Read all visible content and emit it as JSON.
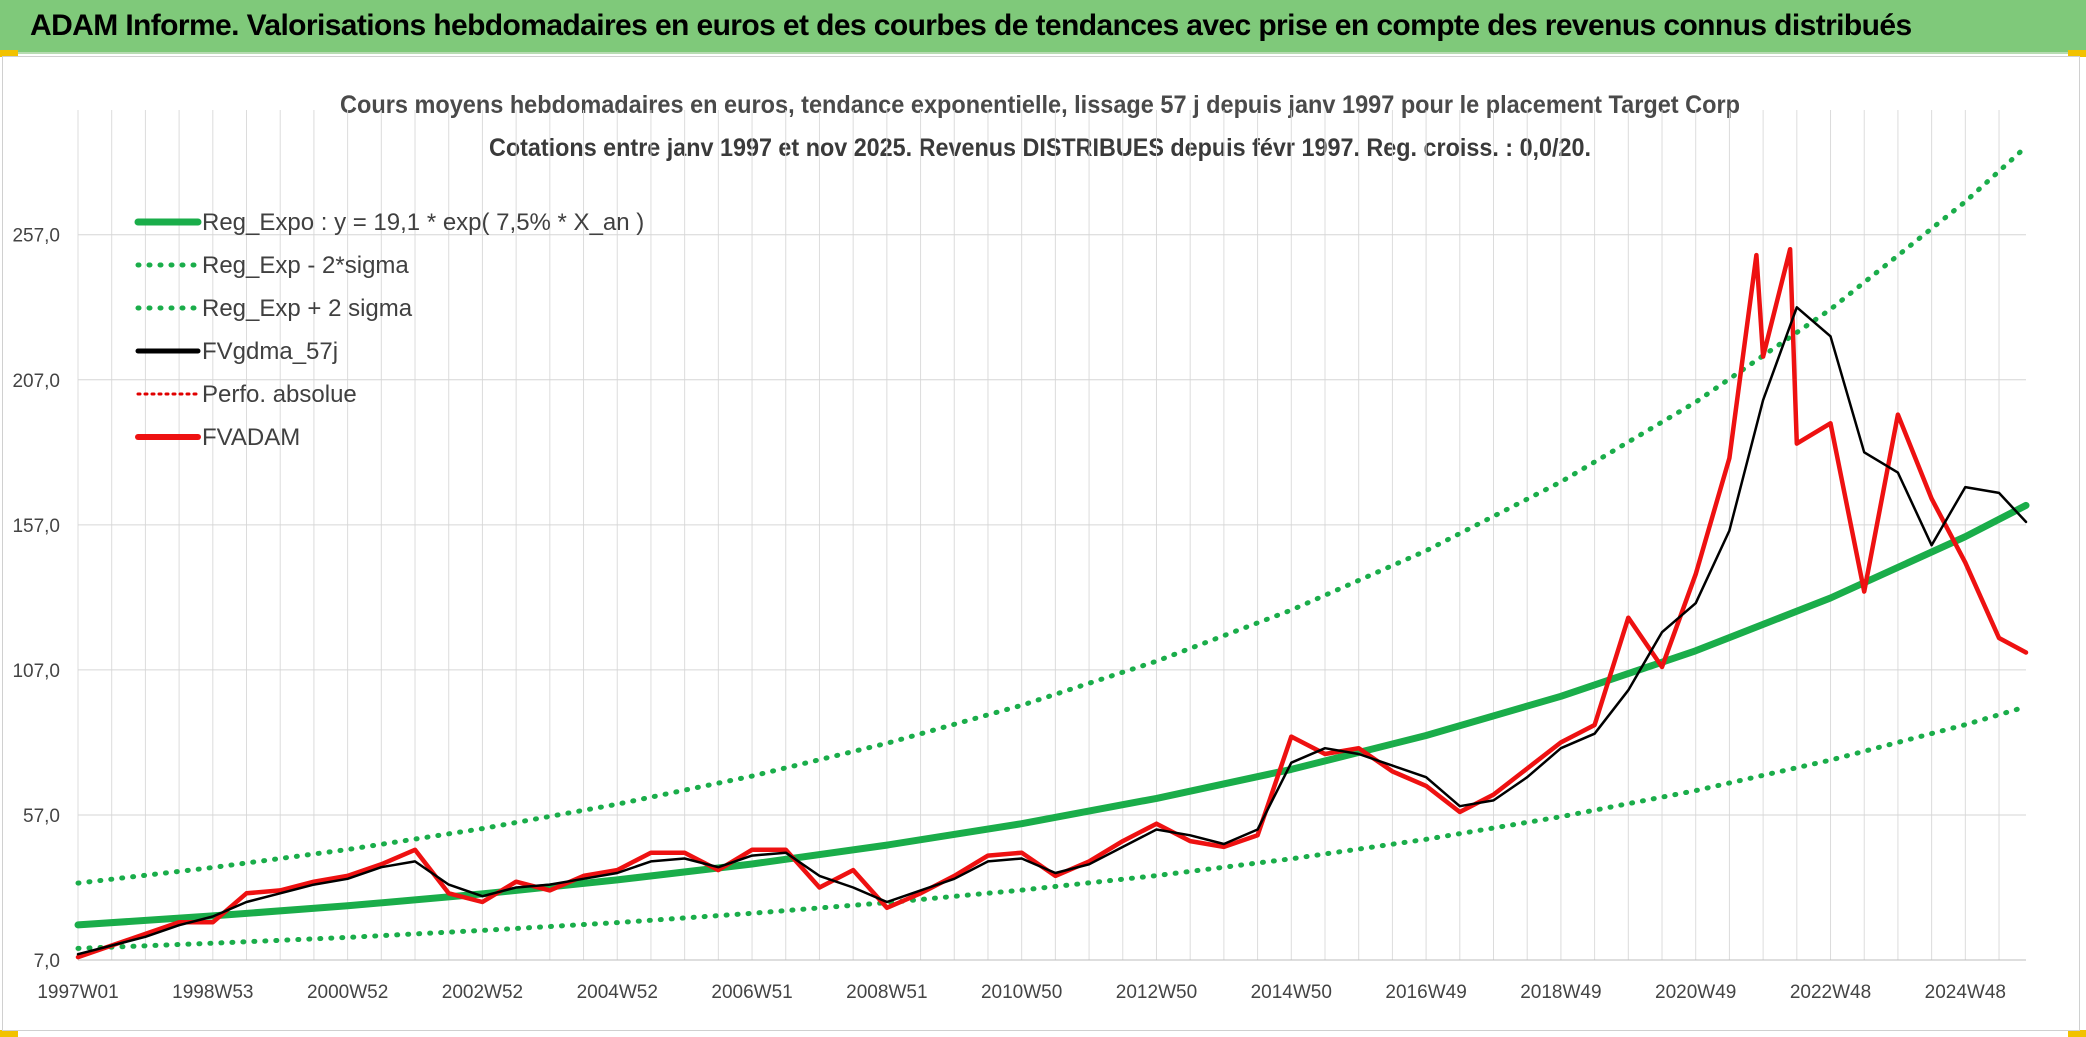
{
  "header": {
    "title": "ADAM Informe. Valorisations hebdomadaires en euros et des courbes de tendances avec prise en compte des revenus connus distribués"
  },
  "chart_data": {
    "type": "line",
    "title": "Cours moyens hebdomadaires en euros, tendance exponentielle, lissage 57 j depuis janv 1997 pour le placement Target Corp",
    "subtitle": "Cotations entre janv 1997 et nov 2025. Revenus DISTRIBUES depuis févr 1997. Reg. croiss. : 0,0/20.",
    "xlabel": "",
    "ylabel": "",
    "x_range": [
      1997.0,
      2025.9
    ],
    "ylim": [
      7,
      300
    ],
    "y_ticks": [
      "7,0",
      "57,0",
      "107,0",
      "157,0",
      "207,0",
      "257,0"
    ],
    "y_tick_values": [
      7,
      57,
      107,
      157,
      207,
      257
    ],
    "x_ticks": [
      "1997W01",
      "1998W53",
      "2000W52",
      "2002W52",
      "2004W52",
      "2006W51",
      "2008W51",
      "2010W50",
      "2012W50",
      "2014W50",
      "2016W49",
      "2018W49",
      "2020W49",
      "2022W48",
      "2024W48"
    ],
    "x_tick_values": [
      1997.0,
      1999.0,
      2001.0,
      2003.0,
      2005.0,
      2007.0,
      2009.0,
      2011.0,
      2013.0,
      2015.0,
      2017.0,
      2019.0,
      2021.0,
      2023.0,
      2025.0
    ],
    "grid": true,
    "legend_position": "top-left",
    "colors": {
      "reg": "#1aad4a",
      "fvgdma": "#000000",
      "perfo": "#e00000",
      "fvadam": "#ee1111"
    },
    "series": [
      {
        "name": "Reg_Expo : y = 19,1 * exp( 7,5% *  X_an )",
        "style": "solid-thick",
        "x": [
          1997.0,
          1999.0,
          2001.0,
          2003.0,
          2005.0,
          2007.0,
          2009.0,
          2011.0,
          2013.0,
          2015.0,
          2017.0,
          2019.0,
          2021.0,
          2023.0,
          2025.0,
          2025.9
        ],
        "y": [
          19.1,
          22.2,
          25.7,
          29.8,
          34.6,
          40.1,
          46.6,
          54.0,
          62.7,
          72.7,
          84.4,
          97.9,
          113.6,
          131.8,
          152.9,
          163.7
        ]
      },
      {
        "name": "Reg_Exp - 2*sigma",
        "style": "dotted",
        "x": [
          1997.0,
          1999.0,
          2001.0,
          2003.0,
          2005.0,
          2007.0,
          2009.0,
          2011.0,
          2013.0,
          2015.0,
          2017.0,
          2019.0,
          2021.0,
          2023.0,
          2025.0,
          2025.9
        ],
        "y": [
          11.0,
          12.8,
          14.8,
          17.2,
          19.9,
          23.1,
          26.8,
          31.1,
          36.1,
          41.9,
          48.6,
          56.4,
          65.4,
          75.9,
          88.1,
          94.3
        ]
      },
      {
        "name": "Reg_Exp + 2 sigma",
        "style": "dotted",
        "x": [
          1997.0,
          1999.0,
          2001.0,
          2003.0,
          2005.0,
          2007.0,
          2009.0,
          2011.0,
          2013.0,
          2015.0,
          2017.0,
          2019.0,
          2021.0,
          2023.0,
          2025.0,
          2025.9
        ],
        "y": [
          33.5,
          38.9,
          45.1,
          52.3,
          60.7,
          70.4,
          81.7,
          94.8,
          110.0,
          127.6,
          148.1,
          171.8,
          199.3,
          231.3,
          268.4,
          287.3
        ]
      },
      {
        "name": "FVgdma_57j",
        "style": "solid-thin",
        "x": [
          1997.0,
          1997.5,
          1998.0,
          1998.5,
          1999.0,
          1999.5,
          2000.0,
          2000.5,
          2001.0,
          2001.5,
          2002.0,
          2002.5,
          2003.0,
          2003.5,
          2004.0,
          2004.5,
          2005.0,
          2005.5,
          2006.0,
          2006.5,
          2007.0,
          2007.5,
          2008.0,
          2008.5,
          2009.0,
          2009.5,
          2010.0,
          2010.5,
          2011.0,
          2011.5,
          2012.0,
          2012.5,
          2013.0,
          2013.5,
          2014.0,
          2014.5,
          2015.0,
          2015.5,
          2016.0,
          2016.5,
          2017.0,
          2017.5,
          2018.0,
          2018.5,
          2019.0,
          2019.5,
          2020.0,
          2020.5,
          2021.0,
          2021.5,
          2022.0,
          2022.5,
          2023.0,
          2023.5,
          2024.0,
          2024.5,
          2025.0,
          2025.5,
          2025.9
        ],
        "y": [
          9,
          12,
          15,
          19,
          22,
          27,
          30,
          33,
          35,
          39,
          41,
          33,
          29,
          32,
          33,
          35,
          37,
          41,
          42,
          39,
          43,
          44,
          36,
          32,
          27,
          31,
          35,
          41,
          42,
          37,
          40,
          46,
          52,
          50,
          47,
          52,
          75,
          80,
          78,
          74,
          70,
          60,
          62,
          70,
          80,
          85,
          100,
          120,
          130,
          155,
          200,
          232,
          222,
          182,
          175,
          150,
          170,
          168,
          158
        ]
      },
      {
        "name": "Perfo. absolue",
        "style": "dotted",
        "x": [],
        "y": []
      },
      {
        "name": "FVADAM",
        "style": "solid-thick",
        "x": [
          1997.0,
          1997.5,
          1998.0,
          1998.5,
          1999.0,
          1999.5,
          2000.0,
          2000.5,
          2001.0,
          2001.5,
          2002.0,
          2002.5,
          2003.0,
          2003.5,
          2004.0,
          2004.5,
          2005.0,
          2005.5,
          2006.0,
          2006.5,
          2007.0,
          2007.5,
          2008.0,
          2008.5,
          2009.0,
          2009.5,
          2010.0,
          2010.5,
          2011.0,
          2011.5,
          2012.0,
          2012.5,
          2013.0,
          2013.5,
          2014.0,
          2014.5,
          2015.0,
          2015.5,
          2016.0,
          2016.5,
          2017.0,
          2017.5,
          2018.0,
          2018.5,
          2019.0,
          2019.5,
          2020.0,
          2020.5,
          2021.0,
          2021.5,
          2021.9,
          2022.0,
          2022.4,
          2022.5,
          2023.0,
          2023.5,
          2024.0,
          2024.5,
          2025.0,
          2025.5,
          2025.9
        ],
        "y": [
          8,
          12,
          16,
          20,
          20,
          30,
          31,
          34,
          36,
          40,
          45,
          30,
          27,
          34,
          31,
          36,
          38,
          44,
          44,
          38,
          45,
          45,
          32,
          38,
          25,
          30,
          36,
          43,
          44,
          36,
          41,
          48,
          54,
          48,
          46,
          50,
          84,
          78,
          80,
          72,
          67,
          58,
          64,
          73,
          82,
          88,
          125,
          108,
          140,
          180,
          250,
          215,
          252,
          185,
          192,
          134,
          195,
          166,
          144,
          118,
          113
        ]
      }
    ]
  }
}
